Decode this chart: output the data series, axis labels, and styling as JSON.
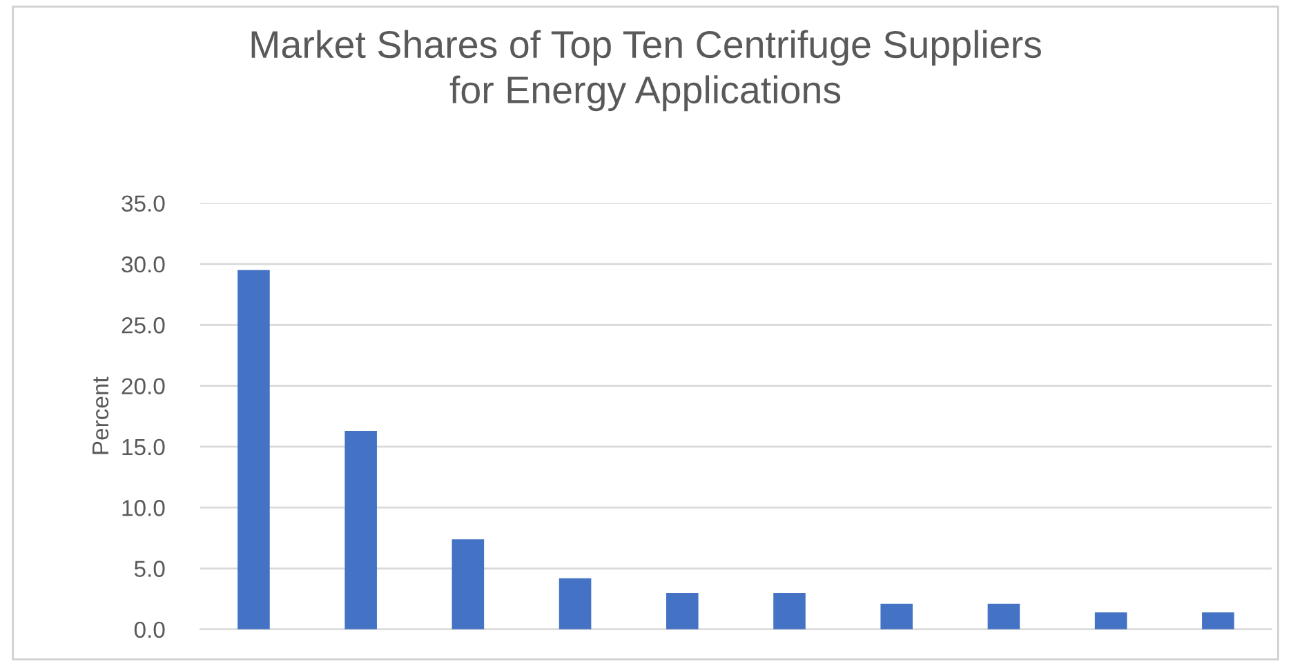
{
  "chart_data": {
    "type": "bar",
    "title": "Market Shares of Top Ten Centrifuge Suppliers\nfor Energy Applications",
    "ylabel": "Percent",
    "categories": [
      null,
      null,
      null,
      null,
      null,
      null,
      null,
      null,
      null,
      null
    ],
    "values": [
      29.5,
      16.3,
      7.4,
      4.2,
      3.0,
      3.0,
      2.1,
      2.1,
      1.4,
      1.4
    ],
    "color": "#4472c4",
    "ylim": [
      0,
      35
    ],
    "yticks": [
      {
        "value": 0,
        "label": "0.0"
      },
      {
        "value": 5,
        "label": "5.0"
      },
      {
        "value": 10,
        "label": "10.0"
      },
      {
        "value": 15,
        "label": "15.0"
      },
      {
        "value": 20,
        "label": "20.0"
      },
      {
        "value": 25,
        "label": "25.0"
      },
      {
        "value": 30,
        "label": "30.0"
      },
      {
        "value": 35,
        "label": "35.0"
      }
    ],
    "grid": "y"
  }
}
